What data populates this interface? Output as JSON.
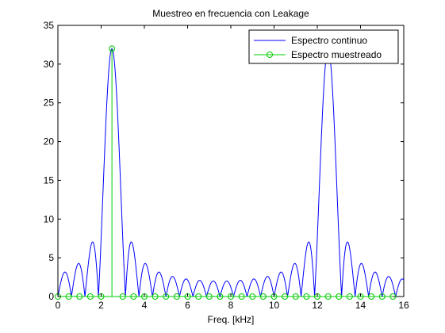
{
  "chart_data": {
    "type": "line",
    "title": "Muestreo en frecuencia con Leakage",
    "xlabel": "Freq. [kHz]",
    "ylabel": "",
    "xlim": [
      0,
      16
    ],
    "ylim": [
      0,
      35
    ],
    "xticks": [
      0,
      2,
      4,
      6,
      8,
      10,
      12,
      14,
      16
    ],
    "yticks": [
      0,
      5,
      10,
      15,
      20,
      25,
      30,
      35
    ],
    "grid": false,
    "legend_position": "top-right",
    "series": [
      {
        "name": "Espectro continuo",
        "color": "#0000ff",
        "style": "line",
        "main_lobe_center": 2.5,
        "peak_value": 32,
        "sidelobe_spacing": 0.625
      },
      {
        "name": "Espectro muestreado",
        "color": "#00cc00",
        "style": "stem-circle",
        "x": [
          0,
          0.5,
          1.0,
          1.5,
          2.0,
          2.5,
          3.0,
          3.5,
          4.0,
          4.5,
          5.0,
          5.5,
          6.0,
          6.5,
          7.0,
          7.5,
          8.0,
          8.5,
          9.0,
          9.5,
          10.0,
          10.5,
          11.0,
          11.5,
          12.0,
          12.5,
          13.0,
          13.5,
          14.0,
          14.5,
          15.0,
          15.5
        ],
        "values": [
          0,
          0,
          0,
          0,
          0,
          32,
          0,
          0,
          0,
          0,
          0,
          0,
          0,
          0,
          0,
          0,
          0,
          0,
          0,
          0,
          0,
          0,
          0,
          0,
          0,
          0,
          0,
          0,
          0,
          0,
          0,
          0
        ]
      }
    ]
  }
}
